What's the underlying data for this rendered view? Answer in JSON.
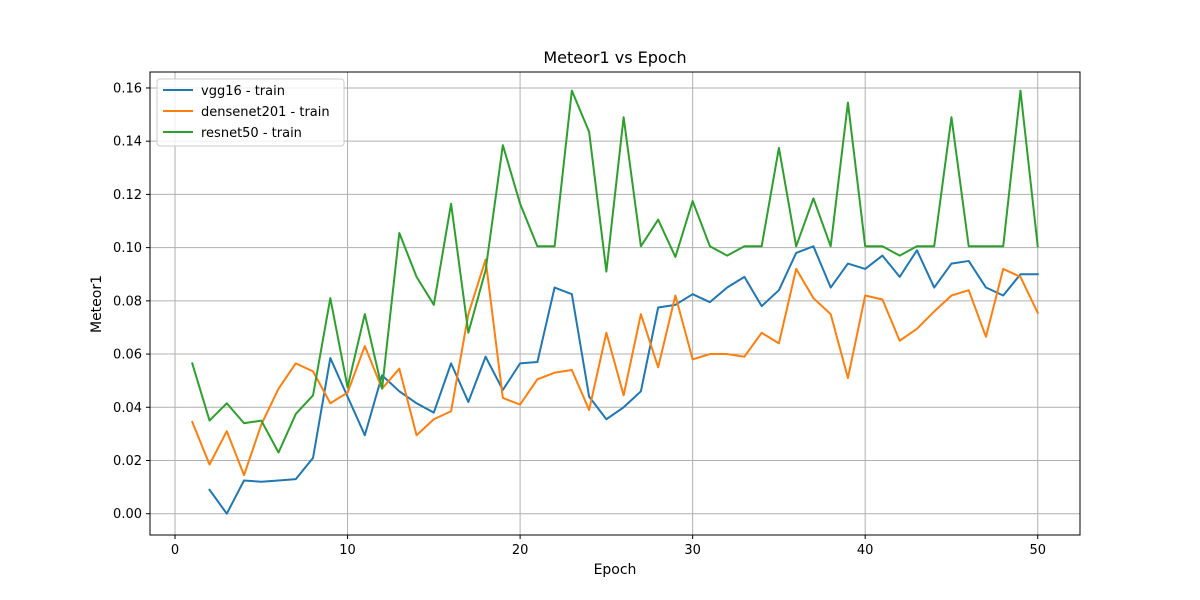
{
  "chart_data": {
    "type": "line",
    "title": "Meteor1 vs Epoch",
    "xlabel": "Epoch",
    "ylabel": "Meteor1",
    "xlim": [
      -1.45,
      52.45
    ],
    "ylim": [
      -0.008,
      0.166
    ],
    "xticks": [
      0,
      10,
      20,
      30,
      40,
      50
    ],
    "xtick_labels": [
      "0",
      "10",
      "20",
      "30",
      "40",
      "50"
    ],
    "yticks": [
      0.0,
      0.02,
      0.04,
      0.06,
      0.08,
      0.1,
      0.12,
      0.14,
      0.16
    ],
    "ytick_labels": [
      "0.00",
      "0.02",
      "0.04",
      "0.06",
      "0.08",
      "0.10",
      "0.12",
      "0.14",
      "0.16"
    ],
    "grid": true,
    "legend_position": "top-left",
    "series": [
      {
        "name": "vgg16 - train",
        "color": "#1f77b4",
        "x": [
          2,
          3,
          4,
          5,
          6,
          7,
          8,
          9,
          10,
          11,
          12,
          13,
          14,
          15,
          16,
          17,
          18,
          19,
          20,
          21,
          22,
          23,
          24,
          25,
          26,
          27,
          28,
          29,
          30,
          31,
          32,
          33,
          34,
          35,
          36,
          37,
          38,
          39,
          40,
          41,
          42,
          43,
          44,
          45,
          46,
          47,
          48,
          49,
          50
        ],
        "values": [
          0.009,
          0.0,
          0.0125,
          0.012,
          0.0125,
          0.013,
          0.021,
          0.0585,
          0.044,
          0.0295,
          0.052,
          0.046,
          0.0415,
          0.038,
          0.0565,
          0.042,
          0.059,
          0.0465,
          0.0565,
          0.057,
          0.085,
          0.0825,
          0.044,
          0.0355,
          0.04,
          0.046,
          0.0775,
          0.0785,
          0.0825,
          0.0795,
          0.085,
          0.089,
          0.078,
          0.084,
          0.098,
          0.1005,
          0.085,
          0.094,
          0.092,
          0.097,
          0.089,
          0.099,
          0.085,
          0.094,
          0.095,
          0.085,
          0.082,
          0.09,
          0.09
        ]
      },
      {
        "name": "densenet201 - train",
        "color": "#ff7f0e",
        "x": [
          1,
          2,
          3,
          4,
          5,
          6,
          7,
          8,
          9,
          10,
          11,
          12,
          13,
          14,
          15,
          16,
          17,
          18,
          19,
          20,
          21,
          22,
          23,
          24,
          25,
          26,
          27,
          28,
          29,
          30,
          31,
          32,
          33,
          34,
          35,
          36,
          37,
          38,
          39,
          40,
          41,
          42,
          43,
          44,
          45,
          46,
          47,
          48,
          49,
          50
        ],
        "values": [
          0.0345,
          0.0185,
          0.031,
          0.0145,
          0.0335,
          0.047,
          0.0565,
          0.0535,
          0.0415,
          0.0455,
          0.063,
          0.047,
          0.0545,
          0.0295,
          0.0355,
          0.0385,
          0.075,
          0.0955,
          0.0435,
          0.041,
          0.0505,
          0.053,
          0.054,
          0.039,
          0.068,
          0.0445,
          0.075,
          0.055,
          0.082,
          0.058,
          0.06,
          0.06,
          0.059,
          0.068,
          0.064,
          0.092,
          0.081,
          0.075,
          0.051,
          0.082,
          0.0805,
          0.065,
          0.0695,
          0.076,
          0.082,
          0.084,
          0.0665,
          0.092,
          0.089,
          0.0755
        ]
      },
      {
        "name": "resnet50 - train",
        "color": "#2ca02c",
        "x": [
          1,
          2,
          3,
          4,
          5,
          6,
          7,
          8,
          9,
          10,
          11,
          12,
          13,
          14,
          15,
          16,
          17,
          18,
          19,
          20,
          21,
          22,
          23,
          24,
          25,
          26,
          27,
          28,
          29,
          30,
          31,
          32,
          33,
          34,
          35,
          36,
          37,
          38,
          39,
          40,
          41,
          42,
          43,
          44,
          45,
          46,
          47,
          48,
          49,
          50
        ],
        "values": [
          0.0565,
          0.035,
          0.0415,
          0.034,
          0.035,
          0.023,
          0.0375,
          0.0445,
          0.081,
          0.0475,
          0.075,
          0.047,
          0.1055,
          0.089,
          0.0785,
          0.1165,
          0.068,
          0.0915,
          0.1385,
          0.1165,
          0.1005,
          0.1005,
          0.159,
          0.1435,
          0.091,
          0.149,
          0.1005,
          0.1105,
          0.0965,
          0.1175,
          0.1005,
          0.097,
          0.1005,
          0.1005,
          0.1375,
          0.1005,
          0.1185,
          0.1005,
          0.1545,
          0.1005,
          0.1005,
          0.097,
          0.1005,
          0.1005,
          0.149,
          0.1005,
          0.1005,
          0.1005,
          0.159,
          0.1005
        ]
      }
    ]
  }
}
